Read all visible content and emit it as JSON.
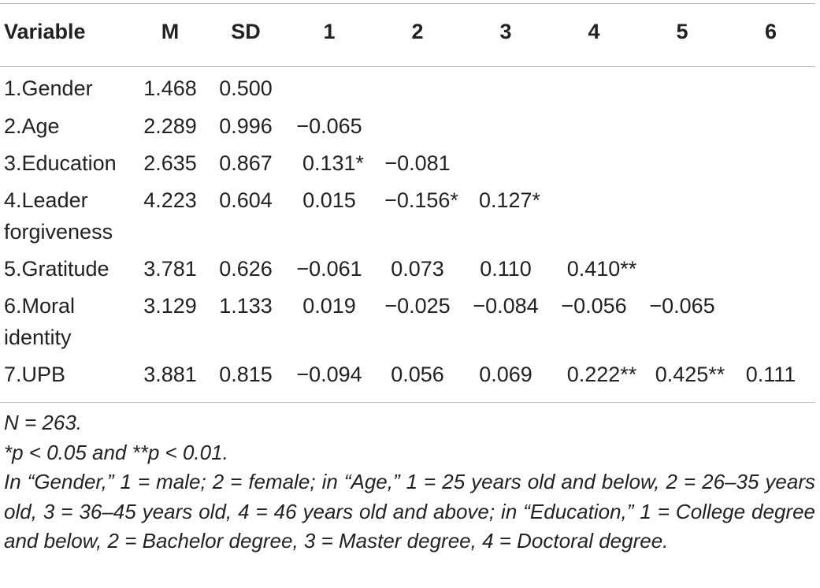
{
  "table": {
    "headers": [
      "Variable",
      "M",
      "SD",
      "1",
      "2",
      "3",
      "4",
      "5",
      "6"
    ],
    "rows": [
      {
        "variable_lines": [
          "1.Gender"
        ],
        "m": "1.468",
        "sd": "0.500",
        "cells": [
          "",
          "",
          "",
          "",
          "",
          ""
        ]
      },
      {
        "variable_lines": [
          "2.Age"
        ],
        "m": "2.289",
        "sd": "0.996",
        "cells": [
          "−0.065",
          "",
          "",
          "",
          "",
          ""
        ]
      },
      {
        "variable_lines": [
          "3.Education"
        ],
        "m": "2.635",
        "sd": "0.867",
        "cells": [
          "0.131*",
          "−0.081",
          "",
          "",
          "",
          ""
        ]
      },
      {
        "variable_lines": [
          "4.Leader",
          "forgiveness"
        ],
        "m": "4.223",
        "sd": "0.604",
        "cells": [
          "0.015",
          "−0.156*",
          "0.127*",
          "",
          "",
          ""
        ]
      },
      {
        "variable_lines": [
          "5.Gratitude"
        ],
        "m": "3.781",
        "sd": "0.626",
        "cells": [
          "−0.061",
          "0.073",
          "0.110",
          "0.410**",
          "",
          ""
        ]
      },
      {
        "variable_lines": [
          "6.Moral",
          "identity"
        ],
        "m": "3.129",
        "sd": "1.133",
        "cells": [
          "0.019",
          "−0.025",
          "−0.084",
          "−0.056",
          "−0.065",
          ""
        ]
      },
      {
        "variable_lines": [
          "7.UPB"
        ],
        "m": "3.881",
        "sd": "0.815",
        "cells": [
          "−0.094",
          "0.056",
          "0.069",
          "0.222**",
          "0.425**",
          "0.111"
        ]
      }
    ]
  },
  "notes": {
    "n": "N = 263.",
    "significance": "*p < 0.05 and **p < 0.01.",
    "coding": "In “Gender,” 1 = male; 2 = female; in “Age,” 1 = 25 years old and below, 2 = 26–35 years old, 3 = 36–45 years old, 4 = 46 years old and above; in “Education,” 1 = College degree and below, 2 = Bachelor degree, 3 = Master degree, 4 = Doctoral degree."
  }
}
